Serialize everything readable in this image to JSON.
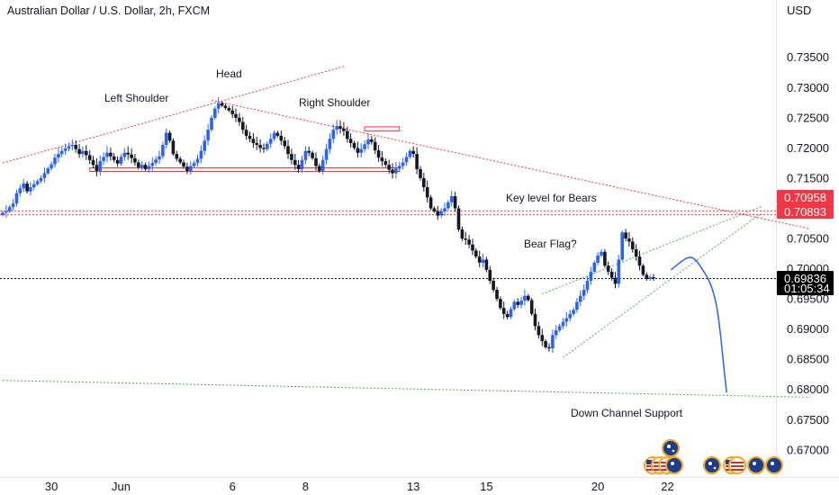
{
  "chart_data": {
    "type": "candlestick",
    "title": "Australian Dollar / U.S. Dollar, 2h, FXCM",
    "currency": "USD",
    "ylim": [
      0.6655,
      0.7445
    ],
    "y_ticks": [
      "0.73500",
      "0.73000",
      "0.72500",
      "0.72000",
      "0.71500",
      "0.70500",
      "0.70000",
      "0.69500",
      "0.69000",
      "0.68500",
      "0.68000",
      "0.67500",
      "0.67000"
    ],
    "x_ticks": [
      "30",
      "Jun",
      "6",
      "8",
      "13",
      "15",
      "20",
      "22"
    ],
    "price_labels": [
      {
        "text": "0.70958",
        "value": 0.70958,
        "color": "#f23645"
      },
      {
        "text": "0.70893",
        "value": 0.70893,
        "color": "#f23645"
      },
      {
        "text": "0.69836",
        "value": 0.69836,
        "color": "#131722"
      },
      {
        "text": "01:05:34",
        "color": "#131722"
      }
    ],
    "annotations": [
      "Head",
      "Left Shoulder",
      "Right Shoulder",
      "Key level for Bears",
      "Bear Flag?",
      "Down Channel Support"
    ],
    "colors": {
      "up": "#2962ff",
      "down": "#131722",
      "resistance": "#f23645",
      "support": "#4caf50",
      "projection": "#2962ff"
    },
    "close_series": [
      0.7093,
      0.7095,
      0.7102,
      0.7108,
      0.7125,
      0.7133,
      0.7141,
      0.7128,
      0.7135,
      0.714,
      0.7145,
      0.715,
      0.7158,
      0.7166,
      0.7173,
      0.7184,
      0.719,
      0.7195,
      0.7199,
      0.7203,
      0.7205,
      0.7198,
      0.719,
      0.7195,
      0.7188,
      0.718,
      0.7172,
      0.7162,
      0.7178,
      0.7185,
      0.7192,
      0.7186,
      0.718,
      0.7174,
      0.7185,
      0.7192,
      0.7189,
      0.7183,
      0.7176,
      0.7168,
      0.7172,
      0.7165,
      0.717,
      0.7175,
      0.7181,
      0.7186,
      0.7205,
      0.7225,
      0.7212,
      0.719,
      0.7182,
      0.7176,
      0.7169,
      0.7162,
      0.717,
      0.7175,
      0.7182,
      0.7195,
      0.7212,
      0.723,
      0.725,
      0.7265,
      0.7274,
      0.727,
      0.7266,
      0.7262,
      0.7256,
      0.725,
      0.7243,
      0.723,
      0.722,
      0.7215,
      0.7208,
      0.7205,
      0.72,
      0.7198,
      0.7207,
      0.7215,
      0.7225,
      0.722,
      0.7212,
      0.7203,
      0.719,
      0.718,
      0.7172,
      0.7165,
      0.718,
      0.7195,
      0.7192,
      0.7183,
      0.717,
      0.7162,
      0.718,
      0.7198,
      0.7215,
      0.723,
      0.7236,
      0.7232,
      0.7228,
      0.7215,
      0.7208,
      0.72,
      0.7192,
      0.7198,
      0.7206,
      0.7214,
      0.721,
      0.7196,
      0.7184,
      0.7178,
      0.7172,
      0.7164,
      0.7158,
      0.7166,
      0.717,
      0.7176,
      0.7185,
      0.7195,
      0.719,
      0.7165,
      0.715,
      0.7135,
      0.7118,
      0.71,
      0.7095,
      0.7088,
      0.7095,
      0.71,
      0.711,
      0.712,
      0.71,
      0.7065,
      0.705,
      0.7048,
      0.704,
      0.703,
      0.702,
      0.701,
      0.7015,
      0.6998,
      0.698,
      0.6965,
      0.695,
      0.6935,
      0.6925,
      0.692,
      0.6933,
      0.6945,
      0.694,
      0.6947,
      0.6955,
      0.6948,
      0.6925,
      0.6905,
      0.689,
      0.688,
      0.687,
      0.6868,
      0.689,
      0.6898,
      0.6905,
      0.6912,
      0.6918,
      0.6925,
      0.6932,
      0.6945,
      0.6955,
      0.6965,
      0.698,
      0.6995,
      0.701,
      0.7022,
      0.7028,
      0.7005,
      0.6995,
      0.6985,
      0.6975,
      0.7015,
      0.706,
      0.705,
      0.7045,
      0.7032,
      0.702,
      0.7005,
      0.699,
      0.6983,
      0.6986,
      0.6984
    ],
    "trend_lines": [
      {
        "kind": "resistance",
        "from": [
          0,
          0.7175
        ],
        "to": [
          98,
          0.7335
        ]
      },
      {
        "kind": "resistance",
        "from": [
          60,
          0.7279
        ],
        "to": [
          232,
          0.7066
        ]
      },
      {
        "kind": "support",
        "from": [
          0,
          0.6815
        ],
        "to": [
          232,
          0.6787
        ]
      },
      {
        "kind": "channel",
        "from": [
          155,
          0.6958
        ],
        "to": [
          218,
          0.7103
        ]
      },
      {
        "kind": "channel",
        "from": [
          161,
          0.6853
        ],
        "to": [
          218,
          0.7092
        ]
      },
      {
        "kind": "key_level",
        "value": 0.70958
      },
      {
        "kind": "key_level",
        "value": 0.70893
      },
      {
        "kind": "current_price",
        "value": 0.69836
      }
    ],
    "zones": [
      {
        "from": 25,
        "to": 114,
        "high": 0.7167,
        "low": 0.7161
      },
      {
        "from": 104,
        "to": 114,
        "high": 0.7235,
        "low": 0.7228
      }
    ],
    "projection_path": [
      [
        192,
        0.6998
      ],
      [
        198,
        0.7015
      ],
      [
        202,
        0.699
      ],
      [
        206,
        0.689
      ],
      [
        208,
        0.6795
      ]
    ]
  }
}
